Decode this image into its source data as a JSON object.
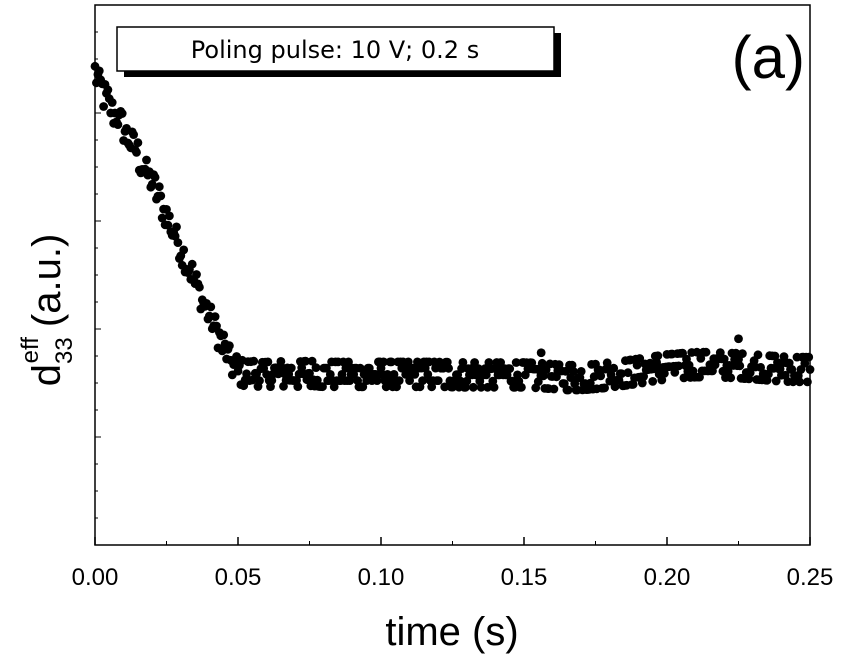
{
  "chart_data": {
    "type": "scatter",
    "title": "",
    "panel_label": "(a)",
    "annotation": "Poling pulse: 10 V; 0.2 s",
    "xlabel": "time (s)",
    "ylabel": {
      "main": "d",
      "subscript": "33",
      "superscript": "eff",
      "unit": "(a.u.)"
    },
    "xlim": [
      0,
      0.25
    ],
    "ylim": [
      0,
      1
    ],
    "x_ticks": [
      0,
      0.05,
      0.1,
      0.15,
      0.2,
      0.25
    ],
    "x_tick_labels": [
      "0.00",
      "0.05",
      "0.10",
      "0.15",
      "0.20",
      "0.25"
    ],
    "y_tick_labels": [],
    "grid": false,
    "legend": "none",
    "marker_color": "#000000",
    "series": [
      {
        "values": [
          [
            0.0,
            0.875
          ],
          [
            0.001,
            0.86
          ],
          [
            0.002,
            0.85
          ],
          [
            0.003,
            0.835
          ],
          [
            0.004,
            0.825
          ],
          [
            0.005,
            0.815
          ],
          [
            0.006,
            0.808
          ],
          [
            0.007,
            0.8
          ],
          [
            0.008,
            0.79
          ],
          [
            0.009,
            0.78
          ],
          [
            0.01,
            0.772
          ],
          [
            0.011,
            0.76
          ],
          [
            0.012,
            0.752
          ],
          [
            0.013,
            0.742
          ],
          [
            0.014,
            0.732
          ],
          [
            0.015,
            0.722
          ],
          [
            0.016,
            0.712
          ],
          [
            0.017,
            0.702
          ],
          [
            0.018,
            0.69
          ],
          [
            0.019,
            0.68
          ],
          [
            0.02,
            0.668
          ],
          [
            0.021,
            0.658
          ],
          [
            0.022,
            0.646
          ],
          [
            0.023,
            0.635
          ],
          [
            0.024,
            0.622
          ],
          [
            0.025,
            0.61
          ],
          [
            0.026,
            0.598
          ],
          [
            0.027,
            0.585
          ],
          [
            0.028,
            0.572
          ],
          [
            0.029,
            0.56
          ],
          [
            0.03,
            0.547
          ],
          [
            0.031,
            0.535
          ],
          [
            0.032,
            0.522
          ],
          [
            0.033,
            0.51
          ],
          [
            0.034,
            0.497
          ],
          [
            0.035,
            0.484
          ],
          [
            0.036,
            0.472
          ],
          [
            0.037,
            0.46
          ],
          [
            0.038,
            0.448
          ],
          [
            0.039,
            0.436
          ],
          [
            0.04,
            0.424
          ],
          [
            0.041,
            0.412
          ],
          [
            0.042,
            0.4
          ],
          [
            0.043,
            0.388
          ],
          [
            0.044,
            0.376
          ],
          [
            0.045,
            0.366
          ],
          [
            0.046,
            0.356
          ],
          [
            0.047,
            0.346
          ],
          [
            0.048,
            0.338
          ],
          [
            0.049,
            0.33
          ],
          [
            0.05,
            0.322
          ],
          [
            0.052,
            0.318
          ],
          [
            0.054,
            0.316
          ],
          [
            0.056,
            0.318
          ],
          [
            0.058,
            0.315
          ],
          [
            0.06,
            0.316
          ],
          [
            0.065,
            0.317
          ],
          [
            0.07,
            0.316
          ],
          [
            0.075,
            0.318
          ],
          [
            0.08,
            0.316
          ],
          [
            0.09,
            0.316
          ],
          [
            0.1,
            0.316
          ],
          [
            0.11,
            0.316
          ],
          [
            0.12,
            0.316
          ],
          [
            0.13,
            0.315
          ],
          [
            0.14,
            0.315
          ],
          [
            0.15,
            0.315
          ],
          [
            0.155,
            0.314
          ],
          [
            0.16,
            0.312
          ],
          [
            0.165,
            0.31
          ],
          [
            0.17,
            0.31
          ],
          [
            0.175,
            0.312
          ],
          [
            0.18,
            0.315
          ],
          [
            0.185,
            0.318
          ],
          [
            0.19,
            0.322
          ],
          [
            0.195,
            0.326
          ],
          [
            0.2,
            0.33
          ],
          [
            0.205,
            0.332
          ],
          [
            0.21,
            0.334
          ],
          [
            0.215,
            0.334
          ],
          [
            0.22,
            0.333
          ],
          [
            0.225,
            0.332
          ],
          [
            0.23,
            0.33
          ],
          [
            0.235,
            0.328
          ],
          [
            0.24,
            0.326
          ],
          [
            0.245,
            0.325
          ],
          [
            0.25,
            0.325
          ]
        ]
      }
    ],
    "outliers": [
      [
        0.225,
        0.382
      ],
      [
        0.156,
        0.356
      ]
    ]
  }
}
